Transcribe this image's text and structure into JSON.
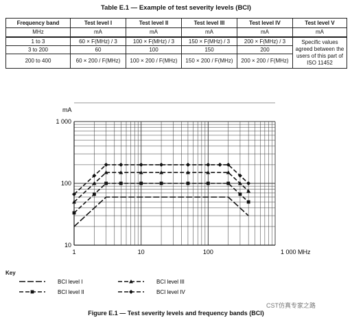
{
  "table": {
    "caption": "Table E.1 — Example of test severity levels (BCI)",
    "headers": [
      "Frequency band",
      "Test level I",
      "Test level II",
      "Test level III",
      "Test level IV",
      "Test level V"
    ],
    "units": [
      "MHz",
      "mA",
      "mA",
      "mA",
      "mA",
      "mA"
    ],
    "rows": [
      [
        "1 to 3",
        "60 × F(MHz) / 3",
        "100 × F(MHz) / 3",
        "150 × F(MHz) / 3",
        "200 × F(MHz) / 3"
      ],
      [
        "3 to 200",
        "60",
        "100",
        "150",
        "200"
      ],
      [
        "200 to 400",
        "60 × 200 / F(MHz)",
        "100 × 200 / F(MHz)",
        "150 × 200 / F(MHz)",
        "200 × 200 / F(MHz)"
      ]
    ],
    "level_v_text": "Specific values agreed between the users of this part of ISO 11452"
  },
  "chart_data": {
    "type": "line",
    "xscale": "log",
    "yscale": "log",
    "xlim": [
      1,
      1000
    ],
    "ylim": [
      10,
      1000
    ],
    "grid": true,
    "ylabel": "mA",
    "xlabel_unit": "MHz",
    "x_tick_labels": [
      "1",
      "10",
      "100",
      "1 000 MHz"
    ],
    "y_tick_labels": [
      "10",
      "100",
      "1 000"
    ],
    "series": [
      {
        "name": "BCI level I",
        "marker": "none",
        "dash": "long",
        "x": [
          1,
          3,
          200,
          400
        ],
        "y": [
          20,
          60,
          60,
          30
        ]
      },
      {
        "name": "BCI level II",
        "marker": "square",
        "dash": "dash",
        "x": [
          1,
          2,
          3,
          5,
          10,
          20,
          50,
          100,
          200,
          300,
          400
        ],
        "y": [
          33.3,
          66.7,
          100,
          100,
          100,
          100,
          100,
          100,
          100,
          66.7,
          50
        ]
      },
      {
        "name": "BCI level III",
        "marker": "triangle",
        "dash": "dash",
        "x": [
          1,
          2,
          3,
          5,
          10,
          20,
          50,
          100,
          200,
          300,
          400
        ],
        "y": [
          50,
          100,
          150,
          150,
          150,
          150,
          150,
          150,
          150,
          100,
          75
        ]
      },
      {
        "name": "BCI level IV",
        "marker": "diamond",
        "dash": "dash",
        "x": [
          1,
          2,
          3,
          5,
          10,
          20,
          50,
          100,
          150,
          200,
          300,
          400
        ],
        "y": [
          66.7,
          133.3,
          200,
          200,
          200,
          200,
          200,
          200,
          200,
          200,
          133.3,
          100
        ]
      }
    ]
  },
  "key": {
    "title": "Key",
    "entries": [
      "BCI level I",
      "BCI level II",
      "BCI level III",
      "BCI level IV"
    ]
  },
  "figure_caption": "Figure E.1 — Test severity levels and frequency bands (BCI)",
  "watermark": "CST仿真专家之路"
}
